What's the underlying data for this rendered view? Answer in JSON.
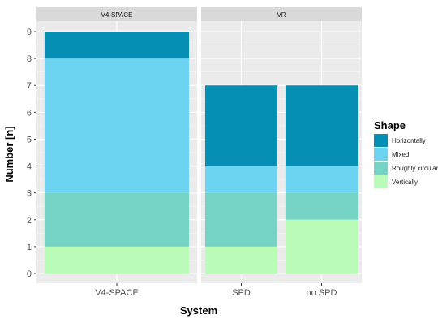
{
  "chart_data": {
    "type": "bar",
    "stacked": true,
    "xlabel": "System",
    "ylabel": "Number [n]",
    "ylim": [
      0,
      9
    ],
    "yticks": [
      0,
      1,
      2,
      3,
      4,
      5,
      6,
      7,
      8,
      9
    ],
    "grid": true,
    "legend": {
      "title": "Shape",
      "placement": "right",
      "entries": [
        {
          "label": "Horizontally",
          "color": "#068FB5"
        },
        {
          "label": "Mixed",
          "color": "#6CD3F0"
        },
        {
          "label": "Roughly circular",
          "color": "#76D4C7"
        },
        {
          "label": "Vertically",
          "color": "#BBFCB8"
        }
      ]
    },
    "stack_order_bottom_to_top": [
      "Vertically",
      "Roughly circular",
      "Mixed",
      "Horizontally"
    ],
    "facets": [
      {
        "label": "V4-SPACE",
        "categories": [
          "V4-SPACE"
        ],
        "series": [
          {
            "name": "Vertically",
            "values": [
              1
            ]
          },
          {
            "name": "Roughly circular",
            "values": [
              2
            ]
          },
          {
            "name": "Mixed",
            "values": [
              5
            ]
          },
          {
            "name": "Horizontally",
            "values": [
              1
            ]
          }
        ]
      },
      {
        "label": "VR",
        "categories": [
          "SPD",
          "no SPD"
        ],
        "series": [
          {
            "name": "Vertically",
            "values": [
              1,
              2
            ]
          },
          {
            "name": "Roughly circular",
            "values": [
              2,
              1
            ]
          },
          {
            "name": "Mixed",
            "values": [
              1,
              1
            ]
          },
          {
            "name": "Horizontally",
            "values": [
              3,
              3
            ]
          }
        ]
      }
    ]
  }
}
